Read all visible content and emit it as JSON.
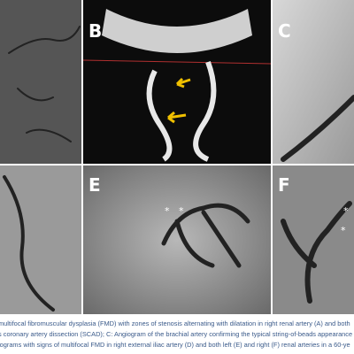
{
  "figure": {
    "panel_labels": [
      "B",
      "C",
      "E",
      "F"
    ],
    "annotations": [
      "*",
      "*",
      "*",
      "*"
    ],
    "caption_lines": [
      "multifocal fibromuscular dysplasia (FMD) with zones of stenosis alternating with dilatation in right renal artery (A) and both",
      "s coronary artery dissection (SCAD); C: Angiogram of the brachial artery confirming the typical string-of-beads appearance",
      "iograms with signs of multifocal FMD in right external iliac artery (D) and both left (E) and right (F) renal arteries in a 60-ye"
    ]
  }
}
